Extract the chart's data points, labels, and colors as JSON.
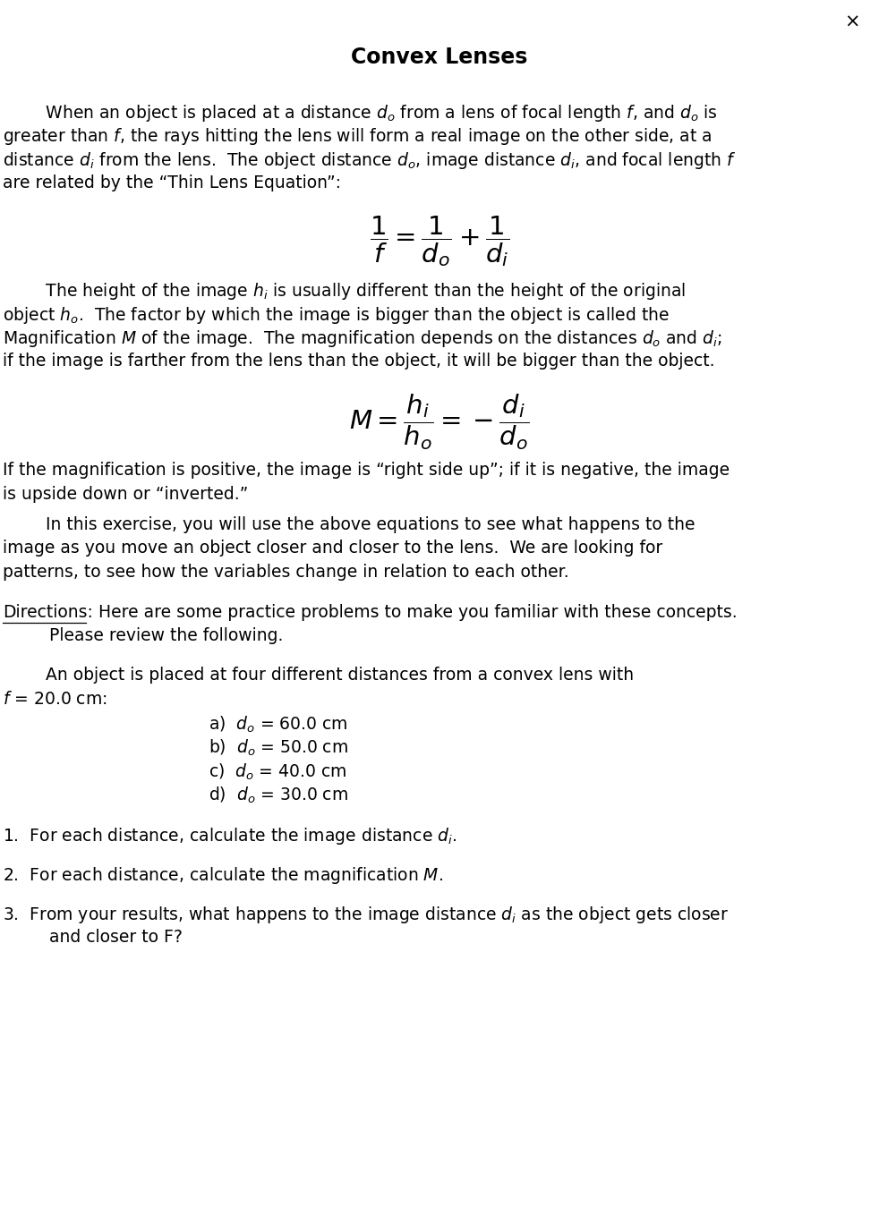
{
  "title": "Convex Lenses",
  "background_color": "#ffffff",
  "text_color": "#000000",
  "page_width": 9.82,
  "page_height": 13.68,
  "para1_lines": [
    "        When an object is placed at a distance $d_o$ from a lens of focal length $f$, and $d_o$ is",
    "greater than $f$, the rays hitting the lens will form a real image on the other side, at a",
    "distance $d_i$ from the lens.  The object distance $d_o$, image distance $d_i$, and focal length $f$",
    "are related by the “Thin Lens Equation”:"
  ],
  "eq1": "$\\dfrac{1}{f} = \\dfrac{1}{d_o} + \\dfrac{1}{d_i}$",
  "para2_lines": [
    "        The height of the image $h_i$ is usually different than the height of the original",
    "object $h_o$.  The factor by which the image is bigger than the object is called the",
    "Magnification $M$ of the image.  The magnification depends on the distances $d_o$ and $d_i$;",
    "if the image is farther from the lens than the object, it will be bigger than the object."
  ],
  "eq2": "$M = \\dfrac{h_i}{h_o} = -\\dfrac{d_i}{d_o}$",
  "para3_lines": [
    "If the magnification is positive, the image is “right side up”; if it is negative, the image",
    "is upside down or “inverted.”"
  ],
  "para4_lines": [
    "        In this exercise, you will use the above equations to see what happens to the",
    "image as you move an object closer and closer to the lens.  We are looking for",
    "patterns, to see how the variables change in relation to each other."
  ],
  "directions_label": "Directions:",
  "directions_rest": "  Here are some practice problems to make you familiar with these concepts.",
  "directions_line2": "Please review the following.",
  "problem_intro1": "        An object is placed at four different distances from a convex lens with",
  "problem_intro2": "$f$ = 20.0 cm:",
  "items": [
    "a)  $d_o$ = 60.0 cm",
    "b)  $d_o$ = 50.0 cm",
    "c)  $d_o$ = 40.0 cm",
    "d)  $d_o$ = 30.0 cm"
  ],
  "q1": "1.  For each distance, calculate the image distance $d_i$.",
  "q2": "2.  For each distance, calculate the magnification $M$.",
  "q3_line1": "3.  From your results, what happens to the image distance $d_i$ as the object gets closer",
  "q3_line2": "and closer to F?"
}
